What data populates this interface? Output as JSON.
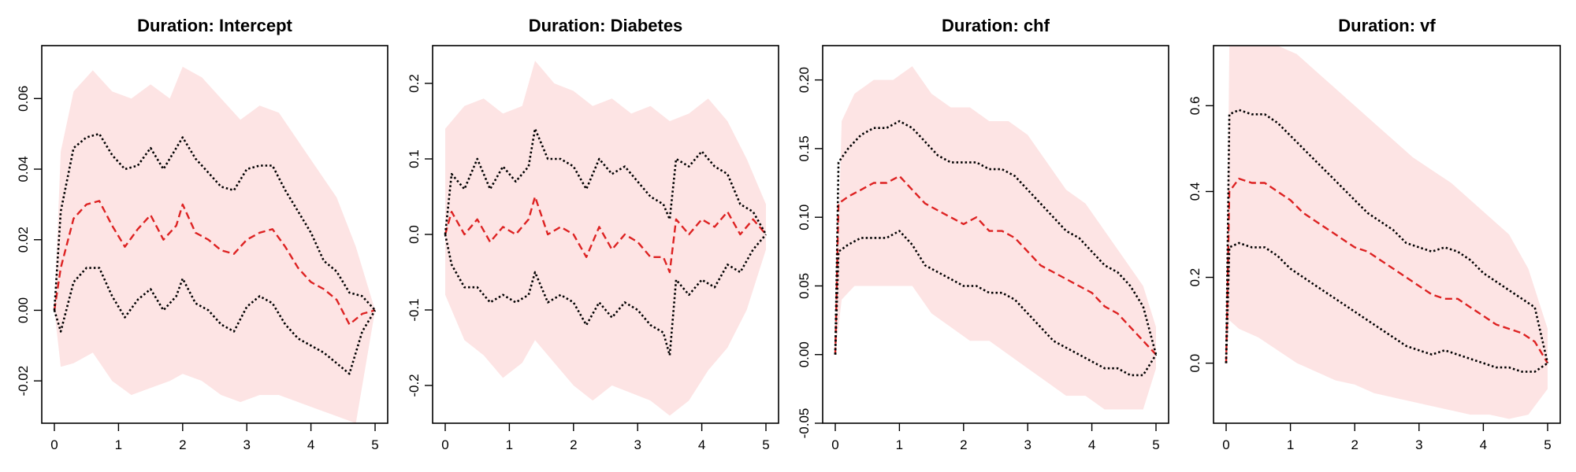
{
  "chart_data": [
    {
      "type": "line",
      "title": "Duration: Intercept",
      "xlabel": "",
      "ylabel": "",
      "xlim": [
        0,
        5
      ],
      "ylim": [
        -0.032,
        0.075
      ],
      "xticks": [
        0,
        1,
        2,
        3,
        4,
        5
      ],
      "yticks": [
        -0.02,
        0.0,
        0.02,
        0.04,
        0.06
      ],
      "ytick_labels": [
        "-0.02",
        "0.00",
        "0.02",
        "0.04",
        "0.06"
      ],
      "band": {
        "x": [
          0,
          0.1,
          0.3,
          0.6,
          0.9,
          1.2,
          1.5,
          1.8,
          2.0,
          2.3,
          2.6,
          2.9,
          3.2,
          3.5,
          3.8,
          4.1,
          4.4,
          4.7,
          5.0
        ],
        "upper": [
          0.0,
          0.045,
          0.062,
          0.068,
          0.062,
          0.06,
          0.064,
          0.06,
          0.069,
          0.066,
          0.06,
          0.054,
          0.058,
          0.056,
          0.048,
          0.04,
          0.032,
          0.018,
          0.0
        ],
        "lower": [
          0.0,
          -0.016,
          -0.015,
          -0.012,
          -0.02,
          -0.024,
          -0.022,
          -0.02,
          -0.018,
          -0.02,
          -0.024,
          -0.026,
          -0.024,
          -0.024,
          -0.026,
          -0.028,
          -0.03,
          -0.032,
          0.0
        ]
      },
      "series": [
        {
          "style": "dashed",
          "color": "#dd2222",
          "x": [
            0,
            0.1,
            0.3,
            0.5,
            0.7,
            0.9,
            1.1,
            1.3,
            1.5,
            1.7,
            1.9,
            2.0,
            2.2,
            2.4,
            2.6,
            2.8,
            3.0,
            3.2,
            3.4,
            3.6,
            3.8,
            4.0,
            4.2,
            4.4,
            4.6,
            4.8,
            5.0
          ],
          "y": [
            0,
            0.012,
            0.026,
            0.03,
            0.031,
            0.024,
            0.018,
            0.023,
            0.027,
            0.02,
            0.024,
            0.03,
            0.022,
            0.02,
            0.017,
            0.016,
            0.02,
            0.022,
            0.023,
            0.018,
            0.012,
            0.008,
            0.006,
            0.003,
            -0.004,
            -0.001,
            0
          ]
        },
        {
          "style": "dotted",
          "color": "#000000",
          "x": [
            0,
            0.1,
            0.3,
            0.5,
            0.7,
            0.9,
            1.1,
            1.3,
            1.5,
            1.7,
            1.9,
            2.0,
            2.2,
            2.4,
            2.6,
            2.8,
            3.0,
            3.2,
            3.4,
            3.6,
            3.8,
            4.0,
            4.2,
            4.4,
            4.6,
            4.8,
            5.0
          ],
          "y": [
            0,
            0.028,
            0.046,
            0.049,
            0.05,
            0.044,
            0.04,
            0.041,
            0.046,
            0.04,
            0.046,
            0.049,
            0.043,
            0.039,
            0.035,
            0.034,
            0.04,
            0.041,
            0.041,
            0.034,
            0.028,
            0.022,
            0.014,
            0.011,
            0.005,
            0.004,
            0
          ]
        },
        {
          "style": "dotted",
          "color": "#000000",
          "x": [
            0,
            0.1,
            0.3,
            0.5,
            0.7,
            0.9,
            1.1,
            1.3,
            1.5,
            1.7,
            1.9,
            2.0,
            2.2,
            2.4,
            2.6,
            2.8,
            3.0,
            3.2,
            3.4,
            3.6,
            3.8,
            4.0,
            4.2,
            4.4,
            4.6,
            4.8,
            5.0
          ],
          "y": [
            0,
            -0.006,
            0.008,
            0.012,
            0.012,
            0.004,
            -0.002,
            0.003,
            0.006,
            0.0,
            0.004,
            0.009,
            0.002,
            0.0,
            -0.004,
            -0.006,
            0.001,
            0.004,
            0.002,
            -0.004,
            -0.008,
            -0.01,
            -0.012,
            -0.015,
            -0.018,
            -0.006,
            0
          ]
        }
      ]
    },
    {
      "type": "line",
      "title": "Duration: Diabetes",
      "xlabel": "",
      "ylabel": "",
      "xlim": [
        0,
        5
      ],
      "ylim": [
        -0.25,
        0.25
      ],
      "xticks": [
        0,
        1,
        2,
        3,
        4,
        5
      ],
      "yticks": [
        -0.2,
        -0.1,
        0.0,
        0.1,
        0.2
      ],
      "ytick_labels": [
        "-0.2",
        "-0.1",
        "0.0",
        "0.1",
        "0.2"
      ],
      "band": {
        "x": [
          0,
          0.3,
          0.6,
          0.9,
          1.2,
          1.4,
          1.7,
          2.0,
          2.3,
          2.6,
          2.9,
          3.2,
          3.5,
          3.8,
          4.1,
          4.4,
          4.7,
          5.0
        ],
        "upper": [
          0.14,
          0.17,
          0.18,
          0.16,
          0.17,
          0.23,
          0.2,
          0.19,
          0.17,
          0.18,
          0.16,
          0.17,
          0.15,
          0.16,
          0.18,
          0.15,
          0.1,
          0.04
        ],
        "lower": [
          -0.08,
          -0.14,
          -0.16,
          -0.19,
          -0.17,
          -0.14,
          -0.17,
          -0.2,
          -0.22,
          -0.2,
          -0.21,
          -0.22,
          -0.24,
          -0.22,
          -0.18,
          -0.15,
          -0.1,
          -0.02
        ]
      },
      "series": [
        {
          "style": "dashed",
          "color": "#dd2222",
          "x": [
            0,
            0.1,
            0.3,
            0.5,
            0.7,
            0.9,
            1.1,
            1.3,
            1.4,
            1.6,
            1.8,
            2.0,
            2.2,
            2.4,
            2.6,
            2.8,
            3.0,
            3.2,
            3.4,
            3.5,
            3.6,
            3.8,
            4.0,
            4.2,
            4.4,
            4.6,
            4.8,
            5.0
          ],
          "y": [
            0,
            0.03,
            0.0,
            0.02,
            -0.01,
            0.01,
            0.0,
            0.02,
            0.05,
            0.0,
            0.01,
            0.0,
            -0.03,
            0.01,
            -0.02,
            0.0,
            -0.01,
            -0.03,
            -0.03,
            -0.05,
            0.02,
            0.0,
            0.02,
            0.01,
            0.03,
            0.0,
            0.02,
            0.0
          ]
        },
        {
          "style": "dotted",
          "color": "#000000",
          "x": [
            0,
            0.1,
            0.3,
            0.5,
            0.7,
            0.9,
            1.1,
            1.3,
            1.4,
            1.6,
            1.8,
            2.0,
            2.2,
            2.4,
            2.6,
            2.8,
            3.0,
            3.2,
            3.4,
            3.5,
            3.6,
            3.8,
            4.0,
            4.2,
            4.4,
            4.6,
            4.8,
            5.0
          ],
          "y": [
            0,
            0.08,
            0.06,
            0.1,
            0.06,
            0.09,
            0.07,
            0.09,
            0.14,
            0.1,
            0.1,
            0.09,
            0.06,
            0.1,
            0.08,
            0.09,
            0.07,
            0.05,
            0.04,
            0.02,
            0.1,
            0.09,
            0.11,
            0.09,
            0.08,
            0.04,
            0.03,
            0.0
          ]
        },
        {
          "style": "dotted",
          "color": "#000000",
          "x": [
            0,
            0.1,
            0.3,
            0.5,
            0.7,
            0.9,
            1.1,
            1.3,
            1.4,
            1.6,
            1.8,
            2.0,
            2.2,
            2.4,
            2.6,
            2.8,
            3.0,
            3.2,
            3.4,
            3.5,
            3.6,
            3.8,
            4.0,
            4.2,
            4.4,
            4.6,
            4.8,
            5.0
          ],
          "y": [
            0,
            -0.04,
            -0.07,
            -0.07,
            -0.09,
            -0.08,
            -0.09,
            -0.08,
            -0.05,
            -0.09,
            -0.08,
            -0.09,
            -0.12,
            -0.09,
            -0.11,
            -0.09,
            -0.1,
            -0.12,
            -0.13,
            -0.16,
            -0.06,
            -0.08,
            -0.06,
            -0.07,
            -0.04,
            -0.05,
            -0.02,
            0.0
          ]
        }
      ]
    },
    {
      "type": "line",
      "title": "Duration: chf",
      "xlabel": "",
      "ylabel": "",
      "xlim": [
        0,
        5
      ],
      "ylim": [
        -0.05,
        0.225
      ],
      "xticks": [
        0,
        1,
        2,
        3,
        4,
        5
      ],
      "yticks": [
        -0.05,
        0.0,
        0.05,
        0.1,
        0.15,
        0.2
      ],
      "ytick_labels": [
        "-0.05",
        "0.00",
        "0.05",
        "0.10",
        "0.15",
        "0.20"
      ],
      "band": {
        "x": [
          0,
          0.1,
          0.3,
          0.6,
          0.9,
          1.2,
          1.5,
          1.8,
          2.1,
          2.4,
          2.7,
          3.0,
          3.3,
          3.6,
          3.9,
          4.2,
          4.5,
          4.8,
          5.0
        ],
        "upper": [
          0.0,
          0.17,
          0.19,
          0.2,
          0.2,
          0.21,
          0.19,
          0.18,
          0.18,
          0.17,
          0.17,
          0.16,
          0.14,
          0.12,
          0.11,
          0.09,
          0.07,
          0.05,
          0.02
        ],
        "lower": [
          0.0,
          0.04,
          0.05,
          0.05,
          0.05,
          0.05,
          0.03,
          0.02,
          0.01,
          0.01,
          0.0,
          -0.01,
          -0.02,
          -0.03,
          -0.03,
          -0.04,
          -0.04,
          -0.04,
          -0.01
        ]
      },
      "series": [
        {
          "style": "dashed",
          "color": "#dd2222",
          "x": [
            0,
            0.05,
            0.2,
            0.4,
            0.6,
            0.8,
            1.0,
            1.2,
            1.4,
            1.6,
            1.8,
            2.0,
            2.2,
            2.4,
            2.6,
            2.8,
            3.0,
            3.2,
            3.4,
            3.6,
            3.8,
            4.0,
            4.2,
            4.4,
            4.6,
            4.8,
            5.0
          ],
          "y": [
            0,
            0.11,
            0.115,
            0.12,
            0.125,
            0.125,
            0.13,
            0.12,
            0.11,
            0.105,
            0.1,
            0.095,
            0.1,
            0.09,
            0.09,
            0.085,
            0.075,
            0.065,
            0.06,
            0.055,
            0.05,
            0.045,
            0.035,
            0.03,
            0.02,
            0.01,
            0.0
          ]
        },
        {
          "style": "dotted",
          "color": "#000000",
          "x": [
            0,
            0.05,
            0.2,
            0.4,
            0.6,
            0.8,
            1.0,
            1.2,
            1.4,
            1.6,
            1.8,
            2.0,
            2.2,
            2.4,
            2.6,
            2.8,
            3.0,
            3.2,
            3.4,
            3.6,
            3.8,
            4.0,
            4.2,
            4.4,
            4.6,
            4.8,
            5.0
          ],
          "y": [
            0,
            0.14,
            0.15,
            0.16,
            0.165,
            0.165,
            0.17,
            0.165,
            0.155,
            0.145,
            0.14,
            0.14,
            0.14,
            0.135,
            0.135,
            0.13,
            0.12,
            0.11,
            0.1,
            0.09,
            0.085,
            0.075,
            0.065,
            0.06,
            0.05,
            0.035,
            0.0
          ]
        },
        {
          "style": "dotted",
          "color": "#000000",
          "x": [
            0,
            0.05,
            0.2,
            0.4,
            0.6,
            0.8,
            1.0,
            1.2,
            1.4,
            1.6,
            1.8,
            2.0,
            2.2,
            2.4,
            2.6,
            2.8,
            3.0,
            3.2,
            3.4,
            3.6,
            3.8,
            4.0,
            4.2,
            4.4,
            4.6,
            4.8,
            5.0
          ],
          "y": [
            0,
            0.075,
            0.08,
            0.085,
            0.085,
            0.085,
            0.09,
            0.08,
            0.065,
            0.06,
            0.055,
            0.05,
            0.05,
            0.045,
            0.045,
            0.04,
            0.03,
            0.02,
            0.01,
            0.005,
            0.0,
            -0.005,
            -0.01,
            -0.01,
            -0.015,
            -0.015,
            0.0
          ]
        }
      ]
    },
    {
      "type": "line",
      "title": "Duration: vf",
      "xlabel": "",
      "ylabel": "",
      "xlim": [
        0,
        5
      ],
      "ylim": [
        -0.14,
        0.74
      ],
      "xticks": [
        0,
        1,
        2,
        3,
        4,
        5
      ],
      "yticks": [
        0.0,
        0.2,
        0.4,
        0.6
      ],
      "ytick_labels": [
        "0.0",
        "0.2",
        "0.4",
        "0.6"
      ],
      "band": {
        "x": [
          0,
          0.05,
          0.2,
          0.5,
          0.8,
          1.1,
          1.4,
          1.7,
          2.0,
          2.3,
          2.6,
          2.9,
          3.2,
          3.5,
          3.8,
          4.1,
          4.4,
          4.7,
          5.0
        ],
        "upper": [
          0.0,
          0.74,
          0.74,
          0.74,
          0.74,
          0.72,
          0.68,
          0.64,
          0.6,
          0.56,
          0.52,
          0.48,
          0.45,
          0.42,
          0.38,
          0.34,
          0.3,
          0.22,
          0.08
        ],
        "lower": [
          0.0,
          0.1,
          0.08,
          0.06,
          0.03,
          0.0,
          -0.02,
          -0.04,
          -0.05,
          -0.07,
          -0.08,
          -0.09,
          -0.1,
          -0.11,
          -0.12,
          -0.12,
          -0.13,
          -0.12,
          -0.06
        ]
      },
      "series": [
        {
          "style": "dashed",
          "color": "#dd2222",
          "x": [
            0,
            0.05,
            0.2,
            0.4,
            0.6,
            0.8,
            1.0,
            1.2,
            1.4,
            1.6,
            1.8,
            2.0,
            2.2,
            2.4,
            2.6,
            2.8,
            3.0,
            3.2,
            3.4,
            3.6,
            3.8,
            4.0,
            4.2,
            4.4,
            4.6,
            4.8,
            5.0
          ],
          "y": [
            0,
            0.4,
            0.43,
            0.42,
            0.42,
            0.4,
            0.38,
            0.35,
            0.33,
            0.31,
            0.29,
            0.27,
            0.26,
            0.24,
            0.22,
            0.2,
            0.18,
            0.16,
            0.15,
            0.15,
            0.13,
            0.11,
            0.09,
            0.08,
            0.07,
            0.05,
            0.0
          ]
        },
        {
          "style": "dotted",
          "color": "#000000",
          "x": [
            0,
            0.05,
            0.2,
            0.4,
            0.6,
            0.8,
            1.0,
            1.2,
            1.4,
            1.6,
            1.8,
            2.0,
            2.2,
            2.4,
            2.6,
            2.8,
            3.0,
            3.2,
            3.4,
            3.6,
            3.8,
            4.0,
            4.2,
            4.4,
            4.6,
            4.8,
            5.0
          ],
          "y": [
            0,
            0.58,
            0.59,
            0.58,
            0.58,
            0.56,
            0.53,
            0.5,
            0.47,
            0.44,
            0.41,
            0.38,
            0.35,
            0.33,
            0.31,
            0.28,
            0.27,
            0.26,
            0.27,
            0.26,
            0.24,
            0.21,
            0.19,
            0.17,
            0.15,
            0.13,
            0.0
          ]
        },
        {
          "style": "dotted",
          "color": "#000000",
          "x": [
            0,
            0.05,
            0.2,
            0.4,
            0.6,
            0.8,
            1.0,
            1.2,
            1.4,
            1.6,
            1.8,
            2.0,
            2.2,
            2.4,
            2.6,
            2.8,
            3.0,
            3.2,
            3.4,
            3.6,
            3.8,
            4.0,
            4.2,
            4.4,
            4.6,
            4.8,
            5.0
          ],
          "y": [
            0,
            0.27,
            0.28,
            0.27,
            0.27,
            0.25,
            0.22,
            0.2,
            0.18,
            0.16,
            0.14,
            0.12,
            0.1,
            0.08,
            0.06,
            0.04,
            0.03,
            0.02,
            0.03,
            0.02,
            0.01,
            0.0,
            -0.01,
            -0.01,
            -0.02,
            -0.02,
            0.0
          ]
        }
      ]
    }
  ],
  "colors": {
    "band": "#fde4e4",
    "estimate": "#dd2222",
    "bounds": "#000000"
  }
}
